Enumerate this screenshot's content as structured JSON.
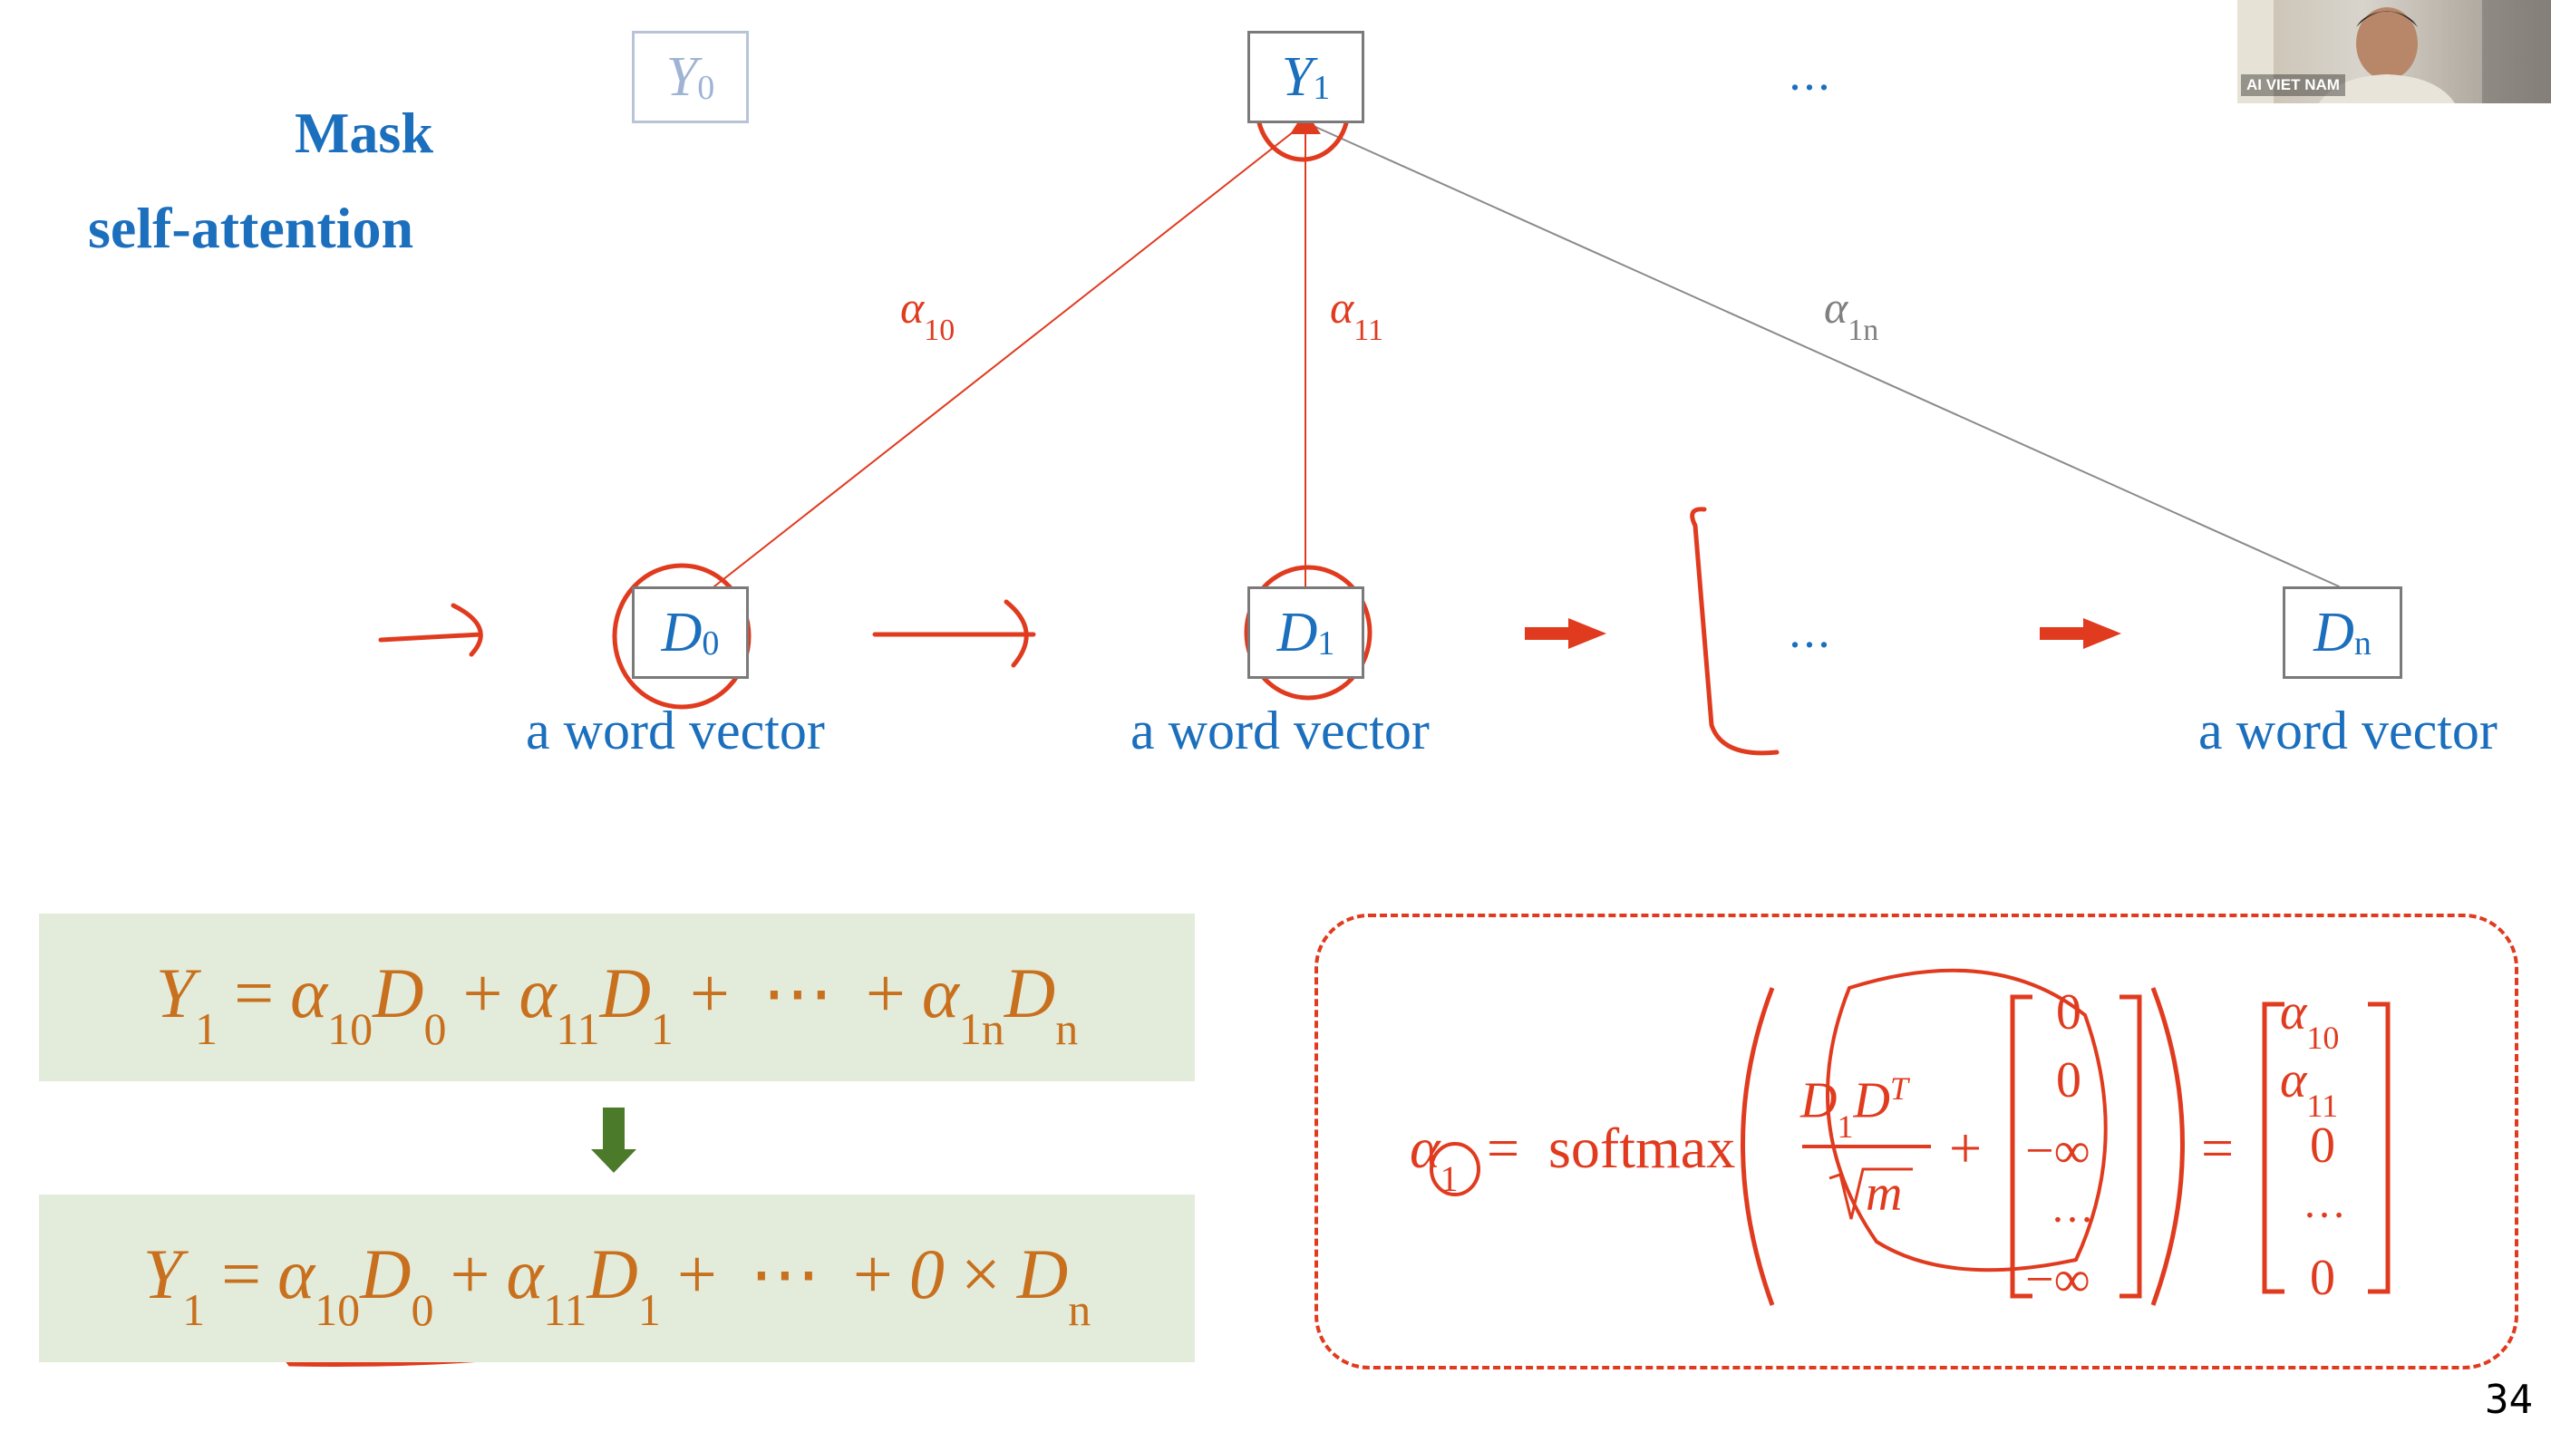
{
  "slide": {
    "title_line1": "Mask",
    "title_line2": "self-attention",
    "page_number": "34"
  },
  "top_nodes": {
    "y0": {
      "label": "Y",
      "sub": "0"
    },
    "y1": {
      "label": "Y",
      "sub": "1"
    },
    "ellipsis": "…"
  },
  "bottom_nodes": {
    "d0": {
      "label": "D",
      "sub": "0",
      "caption": "a word vector"
    },
    "d1": {
      "label": "D",
      "sub": "1",
      "caption": "a word vector"
    },
    "ellipsis": "…",
    "dn": {
      "label": "D",
      "sub": "n",
      "caption": "a word vector"
    }
  },
  "weights": {
    "a10": {
      "sym": "α",
      "sub": "10"
    },
    "a11": {
      "sym": "α",
      "sub": "11"
    },
    "a1n": {
      "sym": "α",
      "sub": "1n"
    }
  },
  "formula_top": {
    "y": "Y",
    "y_sub": "1",
    "eq": "=",
    "a10": "α",
    "a10_sub": "10",
    "d0": "D",
    "d0_sub": "0",
    "plus1": "+",
    "a11": "α",
    "a11_sub": "11",
    "d1": "D",
    "d1_sub": "1",
    "plus2": "+",
    "cdots": "⋯",
    "plus3": "+",
    "a1n": "α",
    "a1n_sub": "1n",
    "dn": "D",
    "dn_sub": "n"
  },
  "formula_bottom": {
    "y": "Y",
    "y_sub": "1",
    "eq": "=",
    "a10": "α",
    "a10_sub": "10",
    "d0": "D",
    "d0_sub": "0",
    "plus1": "+",
    "a11": "α",
    "a11_sub": "11",
    "d1": "D",
    "d1_sub": "1",
    "plus2": "+",
    "dots": "⋯",
    "plus3": "+",
    "zero": "0",
    "times": "×",
    "dn": "D",
    "dn_sub": "n"
  },
  "softmax": {
    "lhs": "α",
    "lhs_sub": "1",
    "eq": "=",
    "fn": "softmax",
    "num": "D",
    "num_sub": "1",
    "num2": "D",
    "num_sup": "T",
    "den": "m",
    "plus": "+",
    "mask": [
      "0",
      "0",
      "−∞",
      "…",
      "−∞"
    ],
    "eq2": "=",
    "result": [
      {
        "sym": "α",
        "sub": "10"
      },
      {
        "sym": "α",
        "sub": "11"
      },
      {
        "sym": "0",
        "sub": ""
      },
      {
        "sym": "…",
        "sub": ""
      },
      {
        "sym": "0",
        "sub": ""
      }
    ]
  },
  "webcam": {
    "label": "AI VIET NAM"
  },
  "colors": {
    "blue": "#1b6fbd",
    "red": "#e03b1f",
    "orange": "#c8701e",
    "green_box": "#e3ecda",
    "arrow_green": "#4a7a2a"
  }
}
